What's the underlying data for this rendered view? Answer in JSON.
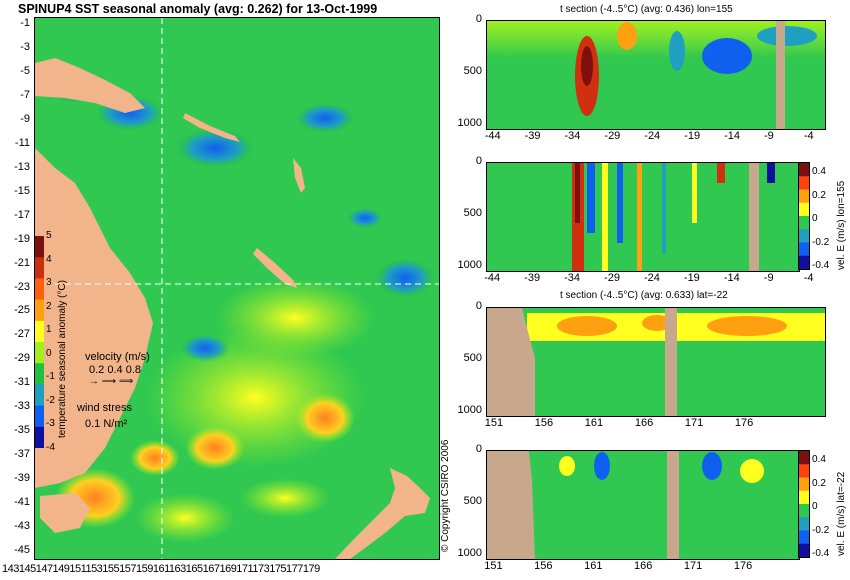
{
  "map": {
    "title": "SPINUP4 SST seasonal anomaly (avg: 0.262) for 13-Oct-1999",
    "lat_ticks": [
      "-1",
      "-3",
      "-5",
      "-7",
      "-9",
      "-11",
      "-13",
      "-15",
      "-17",
      "-19",
      "-21",
      "-23",
      "-25",
      "-27",
      "-29",
      "-31",
      "-33",
      "-35",
      "-37",
      "-39",
      "-41",
      "-43",
      "-45"
    ],
    "lon_ticks_label": "143145147149151153155157159161163165167169171173175177179",
    "colorbar": {
      "ticks": [
        "5",
        "4",
        "3",
        "2",
        "1",
        "0",
        "-1",
        "-2",
        "-3",
        "-4"
      ],
      "label": "temperature seasonal anomaly (°C)",
      "colors": [
        "#7a1010",
        "#c83010",
        "#ff6010",
        "#ffa010",
        "#ffff20",
        "#a0f020",
        "#20c040",
        "#20a0c0",
        "#1060f0",
        "#1010a0"
      ]
    },
    "velocity_legend": {
      "title": "velocity (m/s)",
      "values": "0.2 0.4 0.8"
    },
    "wind_legend": {
      "title": "wind stress",
      "value": "0.1 N/m²"
    }
  },
  "panels": [
    {
      "title": "t section (-4..5°C) (avg: 0.436) lon=155",
      "y_ticks": [
        "0",
        "500",
        "1000"
      ],
      "x_ticks": [
        "-44",
        "-39",
        "-34",
        "-29",
        "-24",
        "-19",
        "-14",
        "-9",
        "-4"
      ]
    },
    {
      "title": "",
      "y_ticks": [
        "0",
        "500",
        "1000"
      ],
      "x_ticks": [
        "-44",
        "-39",
        "-34",
        "-29",
        "-24",
        "-19",
        "-14",
        "-9",
        "-4"
      ],
      "colorbar_ticks": [
        "0.4",
        "0.2",
        "0",
        "-0.2",
        "-0.4"
      ],
      "side_label": "vel. E (m/s) lon=155"
    },
    {
      "title": "t section (-4..5°C) (avg: 0.633) lat=-22",
      "y_ticks": [
        "0",
        "500",
        "1000"
      ],
      "x_ticks": [
        "151",
        "156",
        "161",
        "166",
        "171",
        "176"
      ]
    },
    {
      "title": "",
      "y_ticks": [
        "0",
        "500",
        "1000"
      ],
      "x_ticks": [
        "151",
        "156",
        "161",
        "166",
        "171",
        "176"
      ],
      "colorbar_ticks": [
        "0.4",
        "0.2",
        "0",
        "-0.2",
        "-0.4"
      ],
      "side_label": "vel. E (m/s) lat=-22"
    }
  ],
  "copyright": "© Copyright CSIRO 2006"
}
